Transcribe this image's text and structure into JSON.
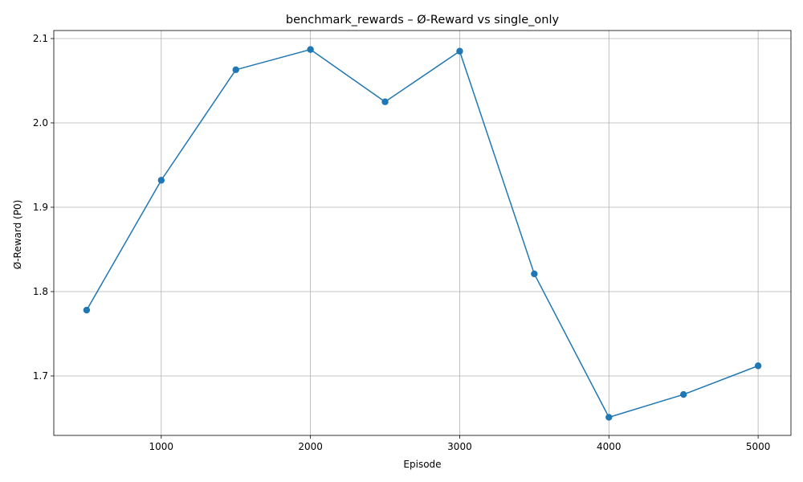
{
  "chart_data": {
    "type": "line",
    "title": "benchmark_rewards – Ø-Reward vs single_only",
    "xlabel": "Episode",
    "ylabel": "Ø-Reward (P0)",
    "xlim": [
      280,
      5220
    ],
    "ylim": [
      1.6295,
      2.1095
    ],
    "xticks": [
      1000,
      2000,
      3000,
      4000,
      5000
    ],
    "xtick_labels": [
      "1000",
      "2000",
      "3000",
      "4000",
      "5000"
    ],
    "yticks": [
      1.7,
      1.8,
      1.9,
      2.0,
      2.1
    ],
    "ytick_labels": [
      "1.7",
      "1.8",
      "1.9",
      "2.0",
      "2.1"
    ],
    "grid": true,
    "series": [
      {
        "name": "single_only",
        "color": "#1f77b4",
        "marker": "circle",
        "x": [
          500,
          1000,
          1500,
          2000,
          2500,
          3000,
          3500,
          4000,
          4500,
          5000
        ],
        "y": [
          1.778,
          1.932,
          2.063,
          2.087,
          2.025,
          2.085,
          1.821,
          1.651,
          1.678,
          1.712
        ]
      }
    ]
  }
}
